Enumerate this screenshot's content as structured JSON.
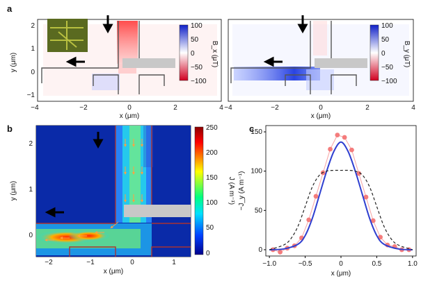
{
  "panels": {
    "a": "a",
    "b": "b",
    "c": "c"
  },
  "chart_data": [
    {
      "panel": "a (left)",
      "type": "heatmap",
      "xlabel": "x (μm)",
      "ylabel": "y (μm)",
      "xlim": [
        -4,
        4
      ],
      "ylim": [
        -1.2,
        2.5
      ],
      "xticks": [
        "−4",
        "−2",
        "0",
        "2",
        "4"
      ],
      "yticks": [
        "−1",
        "0",
        "1",
        "2"
      ],
      "colorbar": {
        "label": "B_x (μT)",
        "ticks": [
          "100",
          "50",
          "0",
          "−50",
          "−100"
        ],
        "range": [
          -100,
          100
        ],
        "colors": [
          "#d00020",
          "#ffffff",
          "#1020c8"
        ]
      }
    },
    {
      "panel": "a (right)",
      "type": "heatmap",
      "xlabel": "x (μm)",
      "xlim": [
        -4,
        4
      ],
      "ylim": [
        -1.2,
        2.5
      ],
      "xticks": [
        "−4",
        "−2",
        "0",
        "2",
        "4"
      ],
      "colorbar": {
        "label": "B_y (μT)",
        "ticks": [
          "100",
          "50",
          "0",
          "−50",
          "−100"
        ],
        "range": [
          -100,
          100
        ],
        "colors": [
          "#d00020",
          "#ffffff",
          "#1020c8"
        ]
      }
    },
    {
      "panel": "b",
      "type": "heatmap",
      "xlabel": "x (μm)",
      "ylabel": "y (μm)",
      "xlim": [
        -2.4,
        1.3
      ],
      "ylim": [
        -0.55,
        2.65
      ],
      "xticks": [
        "−2",
        "−1",
        "0",
        "1"
      ],
      "yticks": [
        "0",
        "1",
        "2"
      ],
      "colorbar": {
        "label": "J (A m⁻¹)",
        "ticks": [
          "250",
          "200",
          "150",
          "100",
          "50",
          "0"
        ],
        "range": [
          0,
          250
        ],
        "colormap": "jet"
      }
    },
    {
      "panel": "c",
      "type": "line",
      "xlabel": "x (μm)",
      "ylabel": "−J_y (A m⁻¹)",
      "xlim": [
        -1.05,
        1.05
      ],
      "ylim": [
        -8,
        158
      ],
      "xticks": [
        "−1.0",
        "−0.5",
        "0",
        "0.5",
        "1.0"
      ],
      "yticks": [
        "0",
        "50",
        "100",
        "150"
      ],
      "series": [
        {
          "style": "markers",
          "color": "#f47c7c",
          "x": [
            -0.95,
            -0.85,
            -0.75,
            -0.65,
            -0.55,
            -0.45,
            -0.35,
            -0.25,
            -0.15,
            -0.05,
            0.05,
            0.15,
            0.25,
            0.35,
            0.45,
            0.55,
            0.65,
            0.75,
            0.85,
            0.95
          ],
          "y": [
            0,
            -3,
            2,
            5,
            15,
            38,
            68,
            98,
            128,
            146,
            143,
            127,
            97,
            67,
            37,
            16,
            6,
            4,
            0,
            0
          ]
        },
        {
          "style": "solid",
          "color": "#2f3fd0",
          "x": [
            -1.0,
            -0.8,
            -0.6,
            -0.5,
            -0.4,
            -0.3,
            -0.2,
            -0.1,
            0.0,
            0.1,
            0.2,
            0.3,
            0.4,
            0.5,
            0.6,
            0.8,
            1.0
          ],
          "y": [
            0,
            1,
            7,
            18,
            40,
            70,
            100,
            125,
            137,
            125,
            100,
            70,
            40,
            18,
            7,
            1,
            0
          ]
        },
        {
          "style": "dashed",
          "color": "#222222",
          "x": [
            -1.0,
            -0.8,
            -0.7,
            -0.6,
            -0.5,
            -0.4,
            -0.3,
            -0.2,
            -0.1,
            0.0,
            0.1,
            0.2,
            0.3,
            0.4,
            0.5,
            0.6,
            0.7,
            0.8,
            1.0
          ],
          "y": [
            0,
            6,
            14,
            30,
            55,
            80,
            95,
            100,
            101,
            101,
            101,
            100,
            95,
            80,
            55,
            30,
            14,
            6,
            0
          ]
        }
      ]
    }
  ]
}
